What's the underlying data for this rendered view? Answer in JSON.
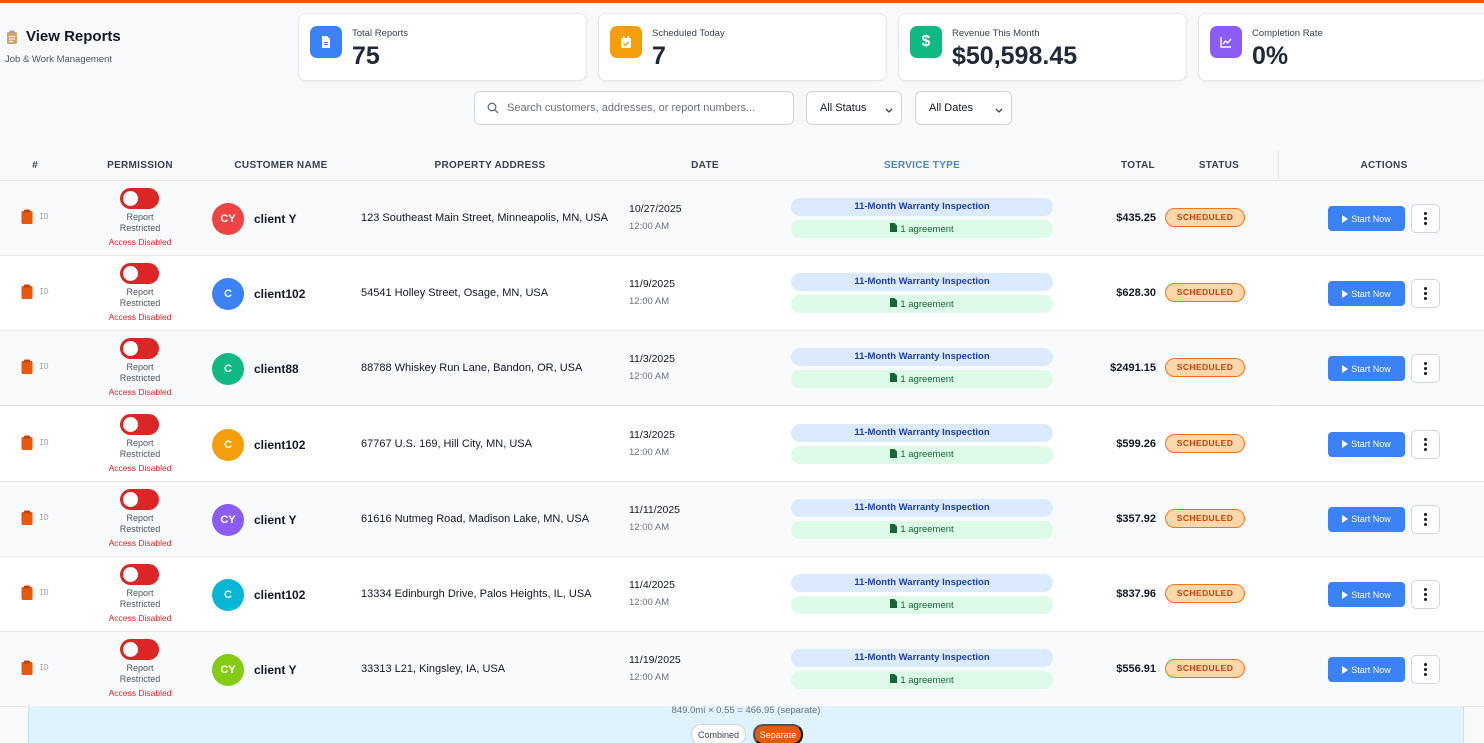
{
  "header": {
    "title": "View Reports",
    "subtitle": "Job & Work Management"
  },
  "stats": [
    {
      "label": "Total Reports",
      "value": "75",
      "icon": "document-icon",
      "color": "#3b82f6"
    },
    {
      "label": "Scheduled Today",
      "value": "7",
      "icon": "calendar-check-icon",
      "color": "#f59e0b"
    },
    {
      "label": "Revenue This Month",
      "value": "$50,598.45",
      "icon": "dollar-icon",
      "color": "#10b981"
    },
    {
      "label": "Completion Rate",
      "value": "0%",
      "icon": "chart-line-icon",
      "color": "#8b5cf6"
    }
  ],
  "filters": {
    "search_placeholder": "Search customers, addresses, or report numbers...",
    "status_value": "All Status",
    "date_value": "All Dates"
  },
  "table": {
    "columns": [
      "#",
      "PERMISSION",
      "CUSTOMER NAME",
      "PROPERTY ADDRESS",
      "DATE",
      "SERVICE TYPE",
      "TOTAL",
      "STATUS",
      "ACTIONS"
    ],
    "id_label": "ID",
    "perm_label_1": "Report",
    "perm_label_2": "Restricted",
    "perm_disabled": "Access Disabled",
    "start_label": "Start Now",
    "rows": [
      {
        "initials": "CY",
        "avatar_color": "#ef4444",
        "name": "client Y",
        "address": "123 Southeast Main Street, Minneapolis, MN, USA",
        "date": "10/27/2025",
        "time": "12:00 AM",
        "service": "11-Month Warranty Inspection",
        "agreement": "1 agreement",
        "total": "$435.25",
        "status": "SCHEDULED"
      },
      {
        "initials": "C",
        "avatar_color": "#3b82f6",
        "name": "client102",
        "address": "54541 Holley Street, Osage, MN, USA",
        "date": "11/9/2025",
        "time": "12:00 AM",
        "service": "11-Month Warranty Inspection",
        "agreement": "1 agreement",
        "total": "$628.30",
        "status": "SCHEDULED"
      },
      {
        "initials": "C",
        "avatar_color": "#10b981",
        "name": "client88",
        "address": "88788 Whiskey Run Lane, Bandon, OR, USA",
        "date": "11/3/2025",
        "time": "12:00 AM",
        "service": "11-Month Warranty Inspection",
        "agreement": "1 agreement",
        "total": "$2491.15",
        "status": "SCHEDULED"
      },
      {
        "initials": "C",
        "avatar_color": "#f59e0b",
        "name": "client102",
        "address": "67767 U.S. 169, Hill City, MN, USA",
        "date": "11/3/2025",
        "time": "12:00 AM",
        "service": "11-Month Warranty Inspection",
        "agreement": "1 agreement",
        "total": "$599.26",
        "status": "SCHEDULED"
      },
      {
        "initials": "CY",
        "avatar_color": "#8b5cf6",
        "name": "client Y",
        "address": "61616 Nutmeg Road, Madison Lake, MN, USA",
        "date": "11/11/2025",
        "time": "12:00 AM",
        "service": "11-Month Warranty Inspection",
        "agreement": "1 agreement",
        "total": "$357.92",
        "status": "SCHEDULED"
      },
      {
        "initials": "C",
        "avatar_color": "#06b6d4",
        "name": "client102",
        "address": "13334 Edinburgh Drive, Palos Heights, IL, USA",
        "date": "11/4/2025",
        "time": "12:00 AM",
        "service": "11-Month Warranty Inspection",
        "agreement": "1 agreement",
        "total": "$837.96",
        "status": "SCHEDULED"
      },
      {
        "initials": "CY",
        "avatar_color": "#84cc16",
        "name": "client Y",
        "address": "33313 L21, Kingsley, IA, USA",
        "date": "11/19/2025",
        "time": "12:00 AM",
        "service": "11-Month Warranty Inspection",
        "agreement": "1 agreement",
        "total": "$556.91",
        "status": "SCHEDULED"
      }
    ]
  },
  "footer": {
    "note": "849.0mi × 0.55 = 466.95 (separate)",
    "combined_label": "Combined",
    "separate_label": "Separate"
  }
}
